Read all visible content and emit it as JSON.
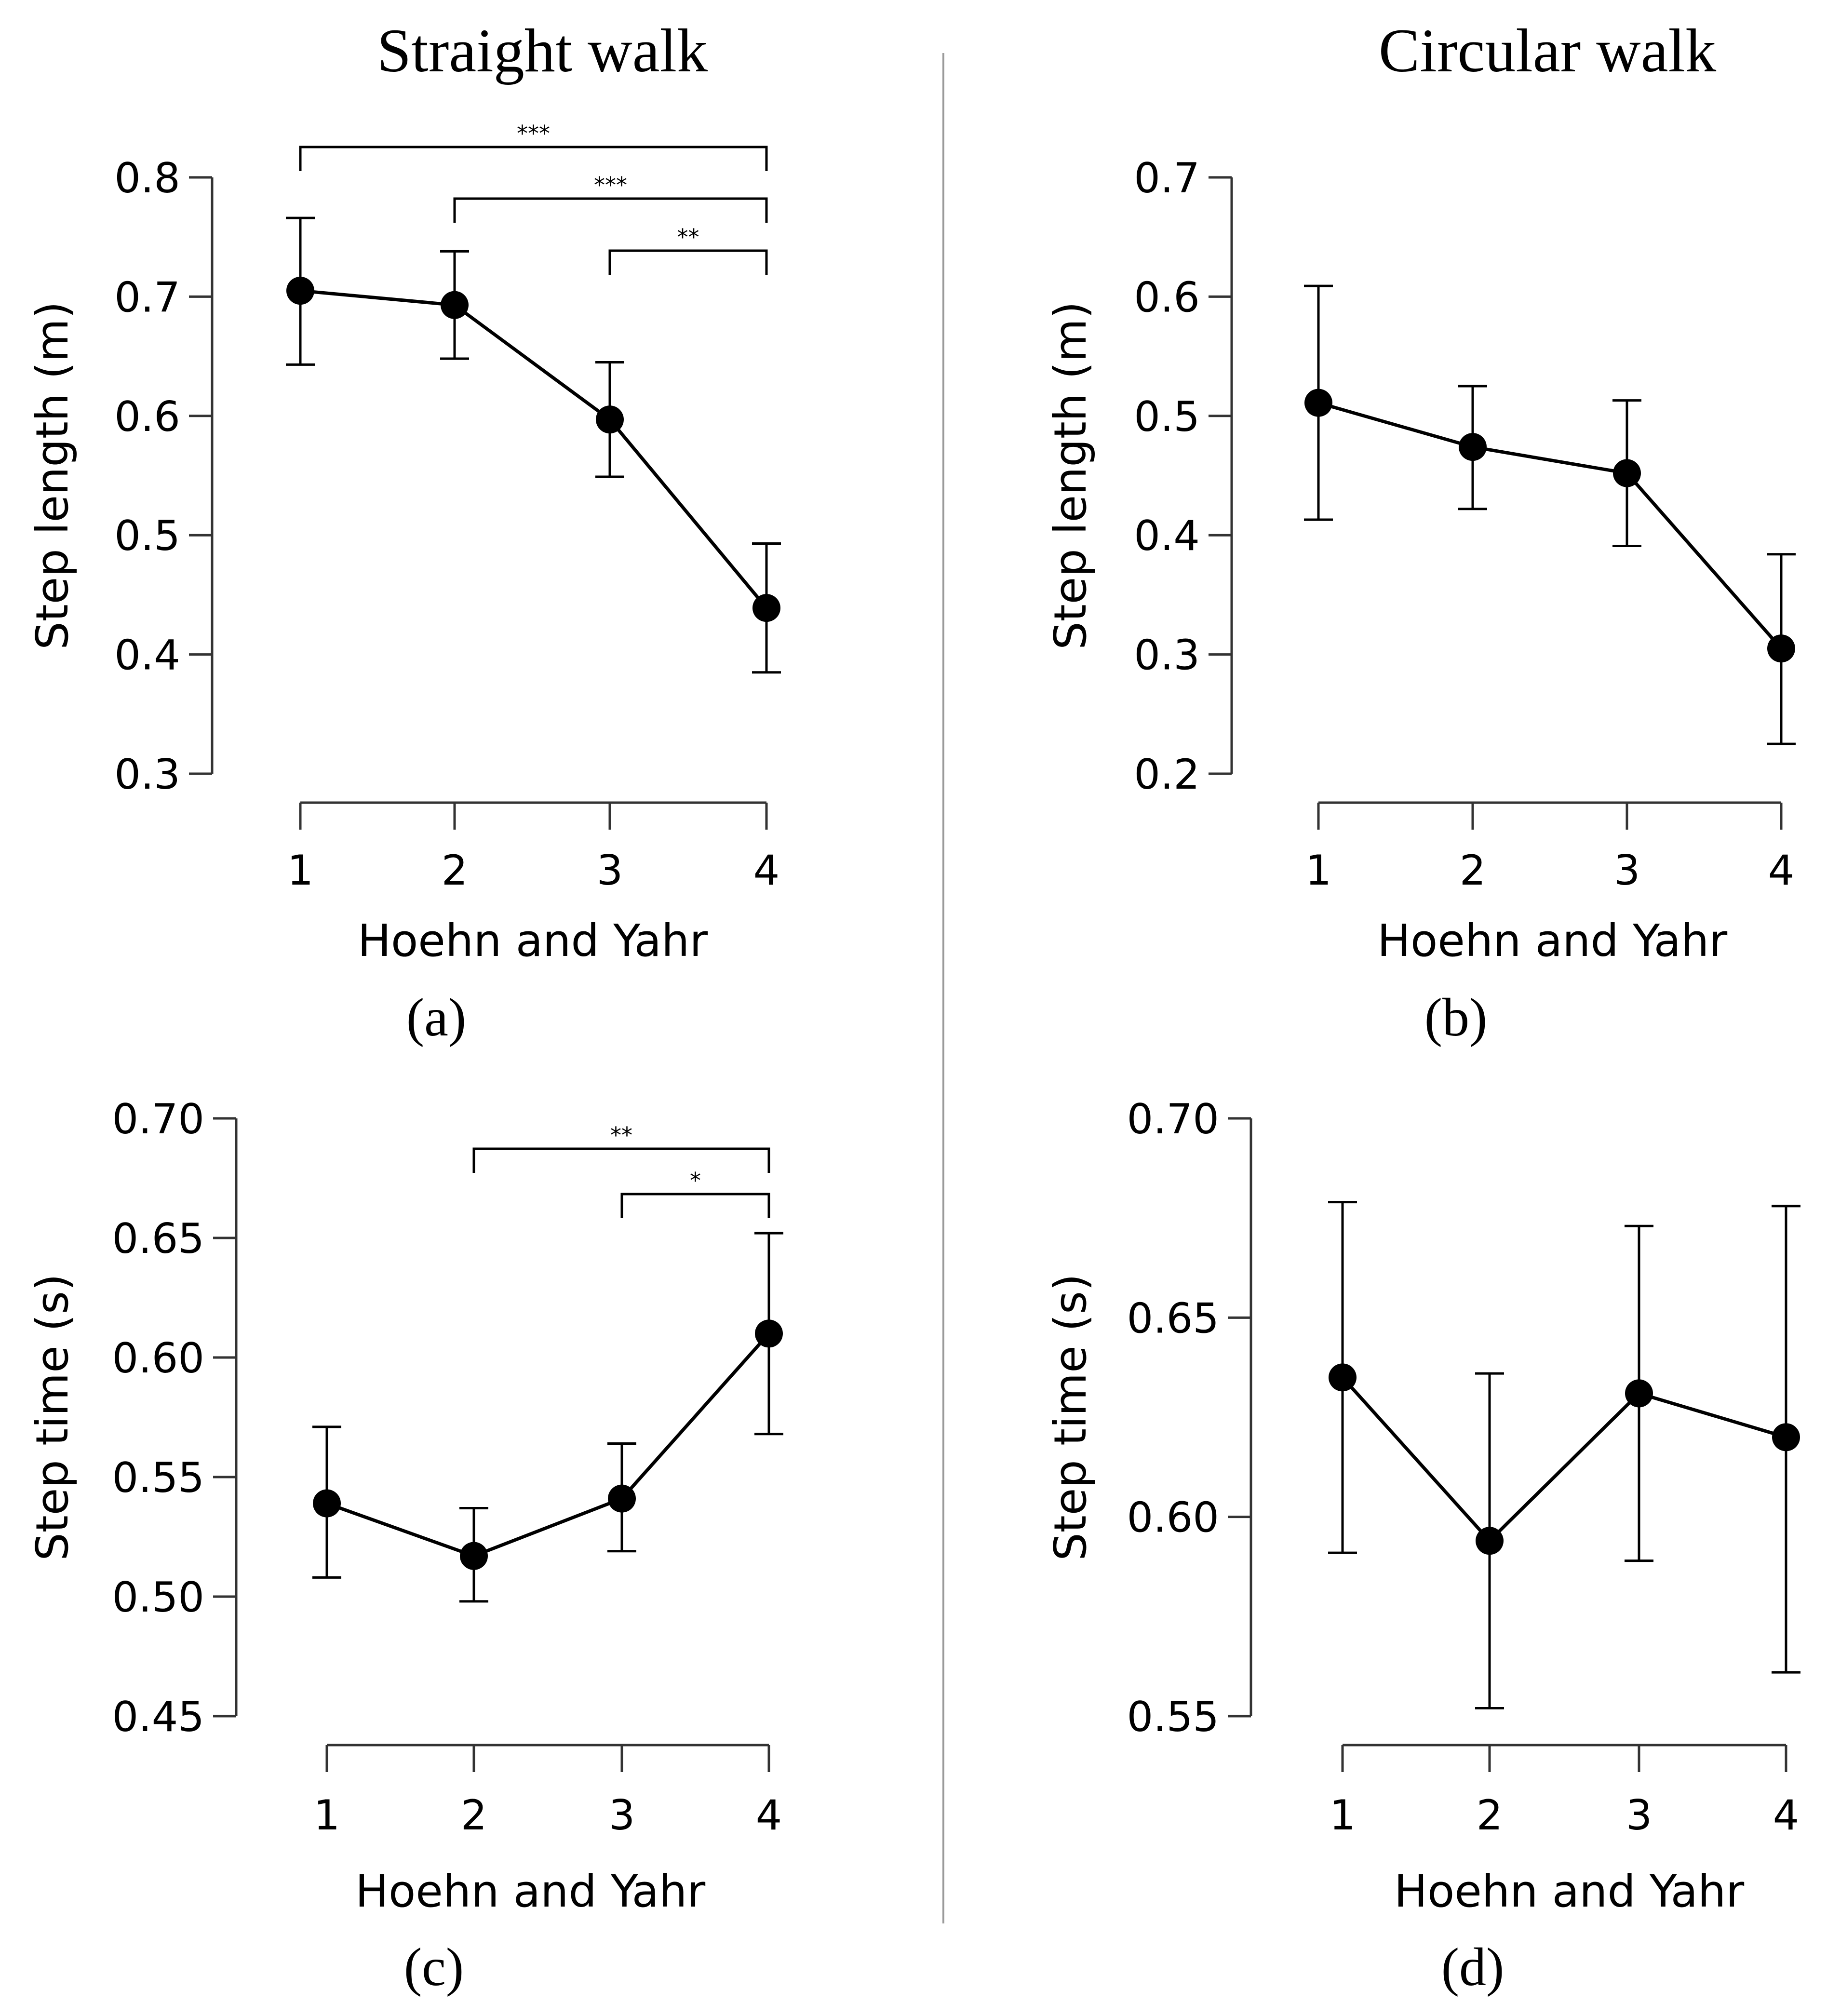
{
  "figure": {
    "column_titles": [
      "Straight walk",
      "Circular walk"
    ]
  },
  "chart_data": [
    {
      "id": "a",
      "type": "line",
      "panel_label": "(a)",
      "column": "Straight walk",
      "xlabel": "Hoehn and Yahr",
      "ylabel": "Step length (m)",
      "categories": [
        "1",
        "2",
        "3",
        "4"
      ],
      "values": [
        0.705,
        0.693,
        0.597,
        0.439
      ],
      "error_low": [
        0.643,
        0.648,
        0.549,
        0.385
      ],
      "error_high": [
        0.766,
        0.738,
        0.645,
        0.493
      ],
      "ylim": [
        0.3,
        0.8
      ],
      "yticks": [
        "0.3",
        "0.4",
        "0.5",
        "0.6",
        "0.7",
        "0.8"
      ],
      "grid": false,
      "significance": [
        {
          "from": 1,
          "to": 4,
          "label": "***"
        },
        {
          "from": 2,
          "to": 4,
          "label": "***"
        },
        {
          "from": 3,
          "to": 4,
          "label": "**"
        }
      ]
    },
    {
      "id": "b",
      "type": "line",
      "panel_label": "(b)",
      "column": "Circular walk",
      "xlabel": "Hoehn and Yahr",
      "ylabel": "Step length (m)",
      "categories": [
        "1",
        "2",
        "3",
        "4"
      ],
      "values": [
        0.511,
        0.474,
        0.452,
        0.305
      ],
      "error_low": [
        0.413,
        0.422,
        0.391,
        0.225
      ],
      "error_high": [
        0.609,
        0.525,
        0.513,
        0.384
      ],
      "ylim": [
        0.2,
        0.7
      ],
      "yticks": [
        "0.2",
        "0.3",
        "0.4",
        "0.5",
        "0.6",
        "0.7"
      ],
      "grid": false,
      "significance": []
    },
    {
      "id": "c",
      "type": "line",
      "panel_label": "(c)",
      "column": "Straight walk",
      "xlabel": "Hoehn and Yahr",
      "ylabel": "Step time (s)",
      "categories": [
        "1",
        "2",
        "3",
        "4"
      ],
      "values": [
        0.539,
        0.517,
        0.541,
        0.61
      ],
      "error_low": [
        0.508,
        0.498,
        0.519,
        0.568
      ],
      "error_high": [
        0.571,
        0.537,
        0.564,
        0.652
      ],
      "ylim": [
        0.45,
        0.7
      ],
      "yticks": [
        "0.45",
        "0.50",
        "0.55",
        "0.60",
        "0.65",
        "0.70"
      ],
      "grid": false,
      "significance": [
        {
          "from": 2,
          "to": 4,
          "label": "**"
        },
        {
          "from": 3,
          "to": 4,
          "label": "*"
        }
      ]
    },
    {
      "id": "d",
      "type": "line",
      "panel_label": "(d)",
      "column": "Circular walk",
      "xlabel": "Hoehn and Yahr",
      "ylabel": "Step time (s)",
      "categories": [
        "1",
        "2",
        "3",
        "4"
      ],
      "values": [
        0.635,
        0.594,
        0.631,
        0.62
      ],
      "error_low": [
        0.591,
        0.552,
        0.589,
        0.561
      ],
      "error_high": [
        0.679,
        0.636,
        0.673,
        0.678
      ],
      "ylim": [
        0.55,
        0.7
      ],
      "yticks": [
        "0.55",
        "0.60",
        "0.65",
        "0.70"
      ],
      "grid": false,
      "significance": []
    }
  ]
}
